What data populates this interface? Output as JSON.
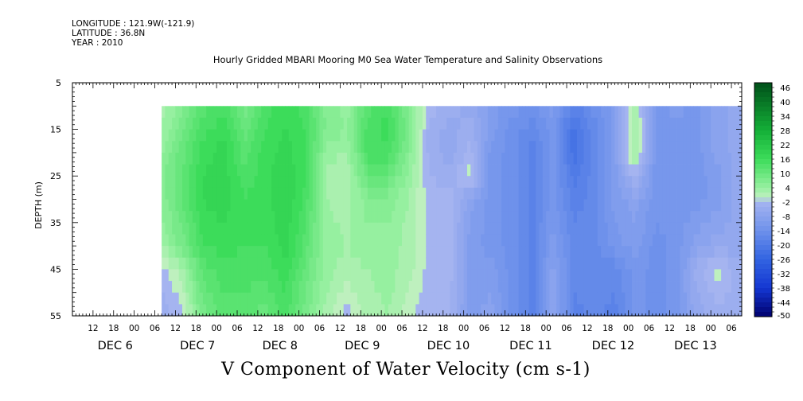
{
  "header": {
    "longitude": "LONGITUDE : 121.9W(-121.9)",
    "latitude": "LATITUDE : 36.8N",
    "year": "YEAR : 2010"
  },
  "chart_data": {
    "type": "heatmap",
    "title": "Hourly Gridded MBARI Mooring M0 Sea Water Temperature and Salinity Observations",
    "subtitle": "V Component of Water Velocity (cm s-1)",
    "ylabel": "DEPTH (m)",
    "ylim": [
      5,
      55
    ],
    "y_inverted": true,
    "y_ticks": [
      5,
      15,
      25,
      35,
      45,
      55
    ],
    "x_hour_labels": [
      "12",
      "18",
      "00",
      "06",
      "12",
      "18",
      "00",
      "06",
      "12",
      "18",
      "00",
      "06",
      "12",
      "18",
      "00",
      "06",
      "12",
      "18",
      "00",
      "06",
      "12",
      "18",
      "00",
      "06",
      "12",
      "18",
      "00",
      "06",
      "12",
      "18",
      "00",
      "06"
    ],
    "x_day_labels": [
      "DEC 6",
      "DEC 7",
      "DEC 8",
      "DEC 9",
      "DEC 10",
      "DEC 11",
      "DEC 12",
      "DEC 13"
    ],
    "x_start": "2010-12-05T06:00",
    "x_end": "2010-12-13T09:00",
    "data_start": "2010-12-06T08:00",
    "data_end": "2010-12-13T09:00",
    "data_depth_range": [
      10,
      55
    ],
    "colorbar_levels": [
      48,
      46,
      44,
      42,
      40,
      38,
      36,
      34,
      32,
      30,
      28,
      26,
      24,
      22,
      20,
      18,
      16,
      14,
      12,
      10,
      8,
      6,
      4,
      2,
      0,
      -2,
      -4,
      -6,
      -8,
      -10,
      -12,
      -14,
      -16,
      -18,
      -20,
      -22,
      -24,
      -26,
      -28,
      -30,
      -32,
      -34,
      -36,
      -38,
      -40,
      -42,
      -44,
      -46,
      -48,
      -50
    ],
    "colorbar_labels": [
      "46",
      "40",
      "34",
      "28",
      "22",
      "16",
      "10",
      "4",
      "-2",
      "-8",
      "-14",
      "-20",
      "-26",
      "-32",
      "-38",
      "-44",
      "-50"
    ],
    "profiles": [
      {
        "t": "2010-12-06T08",
        "v": [
          2,
          3,
          5,
          6,
          6,
          3,
          -2,
          -4
        ]
      },
      {
        "t": "2010-12-06T14",
        "v": [
          6,
          8,
          10,
          11,
          11,
          8,
          2,
          -2
        ]
      },
      {
        "t": "2010-12-06T20",
        "v": [
          12,
          14,
          16,
          17,
          17,
          15,
          12,
          8
        ]
      },
      {
        "t": "2010-12-07T02",
        "v": [
          14,
          16,
          18,
          18,
          18,
          16,
          14,
          12
        ]
      },
      {
        "t": "2010-12-07T08",
        "v": [
          8,
          10,
          12,
          14,
          15,
          15,
          14,
          12
        ]
      },
      {
        "t": "2010-12-07T14",
        "v": [
          14,
          15,
          16,
          16,
          16,
          15,
          14,
          10
        ]
      },
      {
        "t": "2010-12-07T20",
        "v": [
          16,
          17,
          18,
          19,
          19,
          18,
          16,
          14
        ]
      },
      {
        "t": "2010-12-08T02",
        "v": [
          14,
          15,
          15,
          15,
          14,
          12,
          10,
          8
        ]
      },
      {
        "t": "2010-12-08T08",
        "v": [
          6,
          7,
          4,
          2,
          3,
          4,
          4,
          2
        ]
      },
      {
        "t": "2010-12-08T14",
        "v": [
          4,
          5,
          3,
          1,
          2,
          3,
          2,
          -2
        ]
      },
      {
        "t": "2010-12-08T20",
        "v": [
          12,
          14,
          14,
          10,
          6,
          4,
          3,
          2
        ]
      },
      {
        "t": "2010-12-09T02",
        "v": [
          14,
          16,
          14,
          10,
          6,
          4,
          4,
          3
        ]
      },
      {
        "t": "2010-12-09T08",
        "v": [
          6,
          8,
          6,
          4,
          3,
          2,
          2,
          0
        ]
      },
      {
        "t": "2010-12-09T14",
        "v": [
          -2,
          -4,
          -4,
          -3,
          -2,
          -2,
          -2,
          -3
        ]
      },
      {
        "t": "2010-12-09T20",
        "v": [
          -4,
          -6,
          -6,
          -4,
          -2,
          -2,
          -2,
          -3
        ]
      },
      {
        "t": "2010-12-10T02",
        "v": [
          -6,
          -4,
          -2,
          0,
          -8,
          -10,
          -10,
          -10
        ]
      },
      {
        "t": "2010-12-10T08",
        "v": [
          -10,
          -10,
          -12,
          -12,
          -12,
          -12,
          -10,
          -8
        ]
      },
      {
        "t": "2010-12-10T14",
        "v": [
          -12,
          -14,
          -14,
          -14,
          -14,
          -14,
          -14,
          -14
        ]
      },
      {
        "t": "2010-12-10T20",
        "v": [
          -14,
          -16,
          -18,
          -18,
          -18,
          -18,
          -18,
          -18
        ]
      },
      {
        "t": "2010-12-11T02",
        "v": [
          -10,
          -12,
          -12,
          -12,
          -12,
          -10,
          -8,
          -6
        ]
      },
      {
        "t": "2010-12-11T08",
        "v": [
          -18,
          -22,
          -22,
          -20,
          -18,
          -16,
          -16,
          -18
        ]
      },
      {
        "t": "2010-12-11T14",
        "v": [
          -14,
          -16,
          -16,
          -16,
          -16,
          -16,
          -16,
          -16
        ]
      },
      {
        "t": "2010-12-11T20",
        "v": [
          -10,
          -10,
          -10,
          -10,
          -10,
          -12,
          -16,
          -18
        ]
      },
      {
        "t": "2010-12-12T02",
        "v": [
          2,
          4,
          4,
          -2,
          -8,
          -10,
          -12,
          -12
        ]
      },
      {
        "t": "2010-12-12T08",
        "v": [
          -12,
          -12,
          -12,
          -12,
          -12,
          -14,
          -14,
          -14
        ]
      },
      {
        "t": "2010-12-12T14",
        "v": [
          -10,
          -12,
          -12,
          -12,
          -12,
          -12,
          -12,
          -12
        ]
      },
      {
        "t": "2010-12-12T20",
        "v": [
          -12,
          -12,
          -12,
          -12,
          -12,
          -8,
          -4,
          -6
        ]
      },
      {
        "t": "2010-12-13T02",
        "v": [
          -8,
          -8,
          -8,
          -10,
          -10,
          -6,
          0,
          -4
        ]
      },
      {
        "t": "2010-12-13T08",
        "v": [
          -6,
          -6,
          -6,
          -6,
          -6,
          -6,
          -4,
          -4
        ]
      }
    ],
    "profile_depths": [
      10,
      15,
      20,
      25,
      30,
      40,
      45,
      55
    ]
  }
}
